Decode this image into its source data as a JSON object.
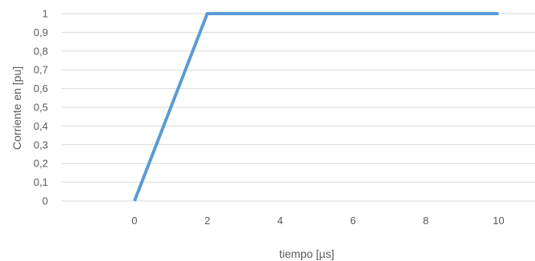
{
  "chart_data": {
    "type": "line",
    "title": "",
    "xlabel": "tiempo [µs]",
    "ylabel": "Corriente en [pu]",
    "xlim": [
      -2,
      11
    ],
    "ylim": [
      0,
      1
    ],
    "x_ticks": [
      0,
      2,
      4,
      6,
      8,
      10
    ],
    "x_tick_labels": [
      "0",
      "2",
      "4",
      "6",
      "8",
      "10"
    ],
    "y_ticks": [
      0,
      0.1,
      0.2,
      0.3,
      0.4,
      0.5,
      0.6,
      0.7,
      0.8,
      0.9,
      1
    ],
    "y_tick_labels": [
      "0",
      "0,1",
      "0,2",
      "0,3",
      "0,4",
      "0,5",
      "0,6",
      "0,7",
      "0,8",
      "0,9",
      "1"
    ],
    "grid": true,
    "series": [
      {
        "color": "#5b9bd5",
        "x": [
          0,
          2,
          10
        ],
        "y": [
          0,
          1,
          1
        ]
      }
    ]
  }
}
